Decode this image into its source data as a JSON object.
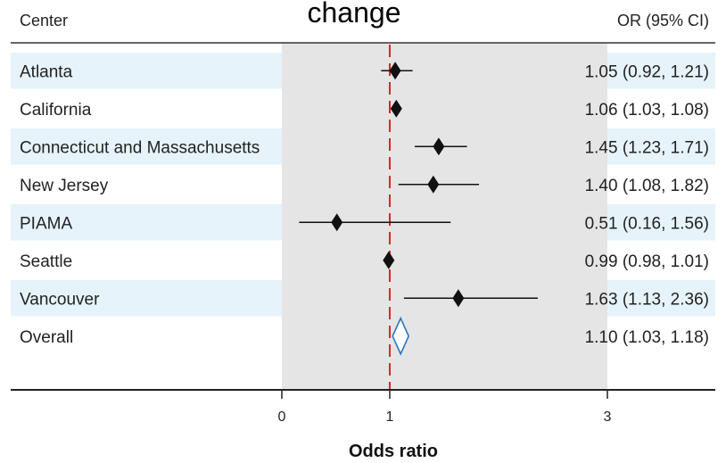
{
  "title": "change",
  "header": {
    "left": "Center",
    "right": "OR (95% CI)"
  },
  "colors": {
    "stripe": "#e6f3fb",
    "plot_bg": "#e5e5e5",
    "marker": "#111111",
    "overall_marker": "#2b78c2",
    "reference_line": "#d62828"
  },
  "chart_data": {
    "type": "forest",
    "title": "change",
    "xlabel": "Odds ratio",
    "xticks": [
      0,
      1,
      3
    ],
    "xlim": [
      0,
      3
    ],
    "reference_value": 1,
    "rows": [
      {
        "label": "Atlanta",
        "or": 1.05,
        "lower": 0.92,
        "upper": 1.21,
        "ci_text": "1.05 (0.92, 1.21)",
        "overall": false
      },
      {
        "label": "California",
        "or": 1.06,
        "lower": 1.03,
        "upper": 1.08,
        "ci_text": "1.06 (1.03, 1.08)",
        "overall": false
      },
      {
        "label": "Connecticut and Massachusetts",
        "or": 1.45,
        "lower": 1.23,
        "upper": 1.71,
        "ci_text": "1.45 (1.23, 1.71)",
        "overall": false
      },
      {
        "label": "New Jersey",
        "or": 1.4,
        "lower": 1.08,
        "upper": 1.82,
        "ci_text": "1.40 (1.08, 1.82)",
        "overall": false
      },
      {
        "label": "PIAMA",
        "or": 0.51,
        "lower": 0.16,
        "upper": 1.56,
        "ci_text": "0.51 (0.16, 1.56)",
        "overall": false
      },
      {
        "label": "Seattle",
        "or": 0.99,
        "lower": 0.98,
        "upper": 1.01,
        "ci_text": "0.99 (0.98, 1.01)",
        "overall": false
      },
      {
        "label": "Vancouver",
        "or": 1.63,
        "lower": 1.13,
        "upper": 2.36,
        "ci_text": "1.63 (1.13, 2.36)",
        "overall": false
      },
      {
        "label": "Overall",
        "or": 1.1,
        "lower": 1.03,
        "upper": 1.18,
        "ci_text": "1.10 (1.03, 1.18)",
        "overall": true
      }
    ]
  }
}
